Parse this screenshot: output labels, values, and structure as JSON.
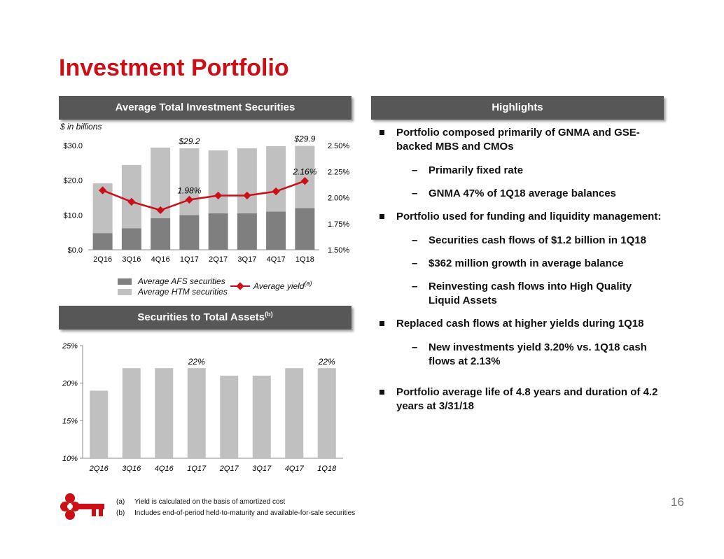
{
  "title": "Investment Portfolio",
  "colors": {
    "brand_red": "#cc0f16",
    "header_gray": "#575757",
    "afs": "#7f7f7f",
    "htm": "#c0c0c0",
    "yield": "#cc0f16"
  },
  "left_header": "Average Total Investment Securities",
  "right_header": "Highlights",
  "units_note": "$ in billions",
  "bottom_header": {
    "text": "Securities to Total Assets",
    "sup": "(b)"
  },
  "legend": {
    "afs": "Average AFS securities",
    "htm": "Average HTM securities",
    "yield": "Average yield",
    "yield_sup": "(a)"
  },
  "chart_data": [
    {
      "type": "bar",
      "stacked": true,
      "categories": [
        "2Q16",
        "3Q16",
        "4Q16",
        "1Q17",
        "2Q17",
        "3Q17",
        "4Q17",
        "1Q18"
      ],
      "series": [
        {
          "name": "Average AFS securities",
          "values": [
            4.8,
            6.2,
            9.1,
            10.0,
            10.5,
            10.5,
            11.0,
            12.0
          ]
        },
        {
          "name": "Average HTM securities",
          "values": [
            14.3,
            18.2,
            20.3,
            19.2,
            18.1,
            18.7,
            18.8,
            17.9
          ]
        },
        {
          "name": "Average yield",
          "axis": "secondary",
          "type": "line",
          "values": [
            2.07,
            1.96,
            1.88,
            1.98,
            2.02,
            2.02,
            2.06,
            2.16
          ]
        }
      ],
      "ylim": [
        0,
        30
      ],
      "y_ticks": [
        "$0.0",
        "$10.0",
        "$20.0",
        "$30.0"
      ],
      "y2lim": [
        1.5,
        2.5
      ],
      "y2_ticks": [
        "1.50%",
        "1.75%",
        "2.00%",
        "2.25%",
        "2.50%"
      ],
      "data_labels": [
        {
          "index": 3,
          "text": "$29.2",
          "target": "total"
        },
        {
          "index": 7,
          "text": "$29.9",
          "target": "total"
        },
        {
          "index": 3,
          "text": "1.98%",
          "target": "yield"
        },
        {
          "index": 7,
          "text": "2.16%",
          "target": "yield"
        }
      ],
      "grid": false,
      "legend_position": "bottom"
    },
    {
      "type": "bar",
      "categories": [
        "2Q16",
        "3Q16",
        "4Q16",
        "1Q17",
        "2Q17",
        "3Q17",
        "4Q17",
        "1Q18"
      ],
      "values": [
        19,
        22,
        22,
        22,
        21,
        21,
        22,
        22
      ],
      "ylim": [
        10,
        25
      ],
      "y_ticks": [
        "10%",
        "15%",
        "20%",
        "25%"
      ],
      "data_labels": [
        {
          "index": 3,
          "text": "22%"
        },
        {
          "index": 7,
          "text": "22%"
        }
      ],
      "grid": false
    }
  ],
  "highlights": [
    {
      "level": 1,
      "text": "Portfolio composed primarily of GNMA and GSE-backed MBS and CMOs"
    },
    {
      "level": 2,
      "text": " Primarily fixed rate"
    },
    {
      "level": 2,
      "text": "GNMA 47% of 1Q18 average balances"
    },
    {
      "level": 1,
      "text": "Portfolio used for funding and liquidity management:"
    },
    {
      "level": 2,
      "text": "Securities cash flows of $1.2 billion in 1Q18"
    },
    {
      "level": 2,
      "text": "$362 million growth in average balance"
    },
    {
      "level": 2,
      "text": "Reinvesting cash flows into High Quality Liquid Assets"
    },
    {
      "level": 1,
      "text": "Replaced cash flows at higher yields during 1Q18"
    },
    {
      "level": 2,
      "text": "New investments yield 3.20% vs. 1Q18 cash flows at 2.13%"
    },
    {
      "level": 1,
      "text": "Portfolio average life of 4.8 years and duration of 4.2 years at 3/31/18"
    }
  ],
  "sub_marker": "–",
  "footnotes": [
    {
      "label": "(a)",
      "text": "Yield is calculated on the basis of amortized cost"
    },
    {
      "label": "(b)",
      "text": "Includes end-of-period held-to-maturity and available-for-sale securities"
    }
  ],
  "page_number": "16",
  "logo_icon": "key-icon"
}
